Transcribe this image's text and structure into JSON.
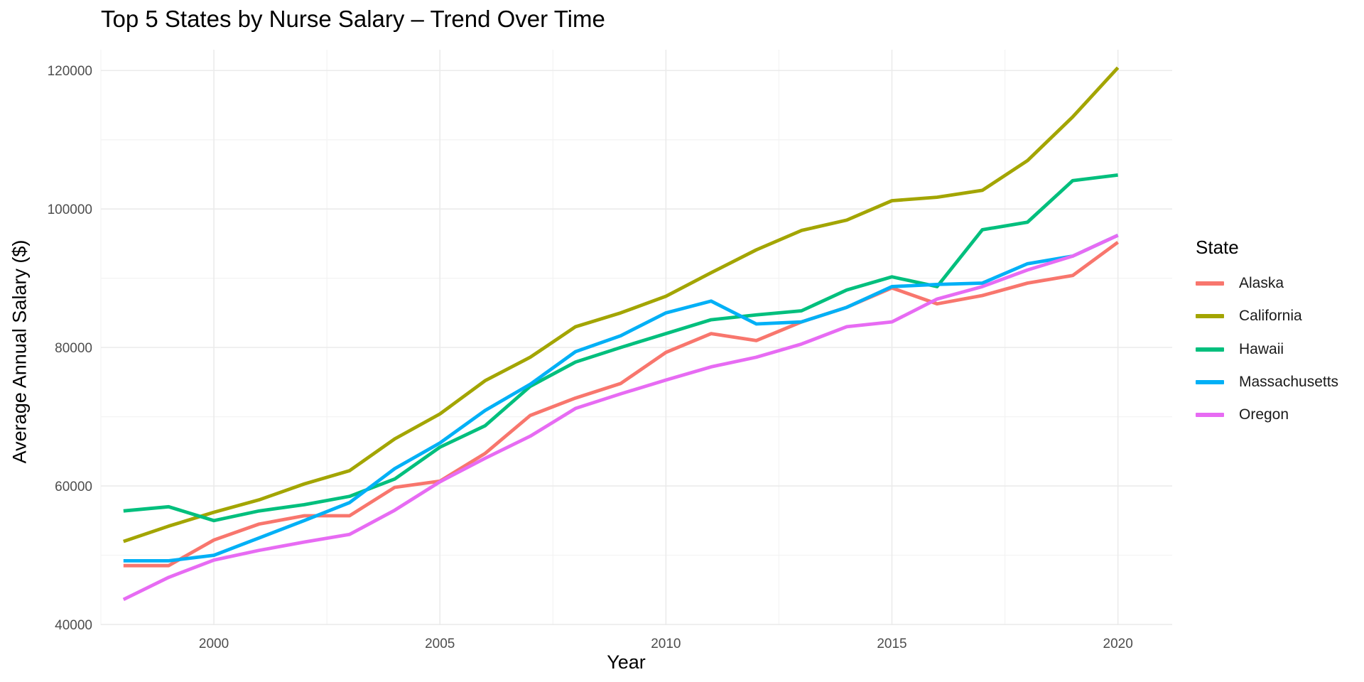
{
  "chart_data": {
    "type": "line",
    "title": "Top 5 States by Nurse Salary – Trend Over Time",
    "xlabel": "Year",
    "ylabel": "Average Annual Salary ($)",
    "xlim": [
      1997.5,
      2021.2
    ],
    "ylim": [
      39900,
      123000
    ],
    "x_ticks": [
      2000,
      2005,
      2010,
      2015,
      2020
    ],
    "y_ticks": [
      40000,
      60000,
      80000,
      100000,
      120000
    ],
    "grid": true,
    "legend": {
      "title": "State",
      "position": "right"
    },
    "x": [
      1998,
      1999,
      2000,
      2001,
      2002,
      2003,
      2004,
      2005,
      2006,
      2007,
      2008,
      2009,
      2010,
      2011,
      2012,
      2013,
      2014,
      2015,
      2016,
      2017,
      2018,
      2019,
      2020
    ],
    "series": [
      {
        "name": "Alaska",
        "color": "#F8766D",
        "values": [
          48500,
          48500,
          52200,
          54500,
          55700,
          55700,
          59800,
          60700,
          64700,
          70200,
          72700,
          74800,
          79300,
          82000,
          81000,
          83700,
          85800,
          88600,
          86300,
          87500,
          89300,
          90400,
          95200
        ]
      },
      {
        "name": "California",
        "color": "#A3A500",
        "values": [
          52000,
          54200,
          56200,
          58000,
          60300,
          62200,
          66800,
          70400,
          75200,
          78600,
          83000,
          85000,
          87400,
          90800,
          94100,
          96900,
          98400,
          101200,
          101700,
          102700,
          107000,
          113300,
          120400
        ]
      },
      {
        "name": "Hawaii",
        "color": "#00BF7D",
        "values": [
          56400,
          57000,
          55000,
          56400,
          57300,
          58500,
          61000,
          65600,
          68700,
          74400,
          77900,
          80000,
          82000,
          84000,
          84700,
          85300,
          88300,
          90200,
          88800,
          97000,
          98100,
          104100,
          104900
        ]
      },
      {
        "name": "Massachusetts",
        "color": "#00B0F6",
        "values": [
          49200,
          49200,
          50000,
          52500,
          55000,
          57600,
          62500,
          66200,
          70900,
          74700,
          79400,
          81700,
          85000,
          86700,
          83400,
          83700,
          85800,
          88800,
          89100,
          89300,
          92100,
          93200,
          96200
        ]
      },
      {
        "name": "Oregon",
        "color": "#E76BF3",
        "values": [
          43600,
          46800,
          49300,
          50700,
          51900,
          53000,
          56500,
          60600,
          64000,
          67200,
          71200,
          73300,
          75300,
          77200,
          78600,
          80500,
          83000,
          83700,
          87000,
          88800,
          91200,
          93200,
          96200
        ]
      }
    ]
  }
}
